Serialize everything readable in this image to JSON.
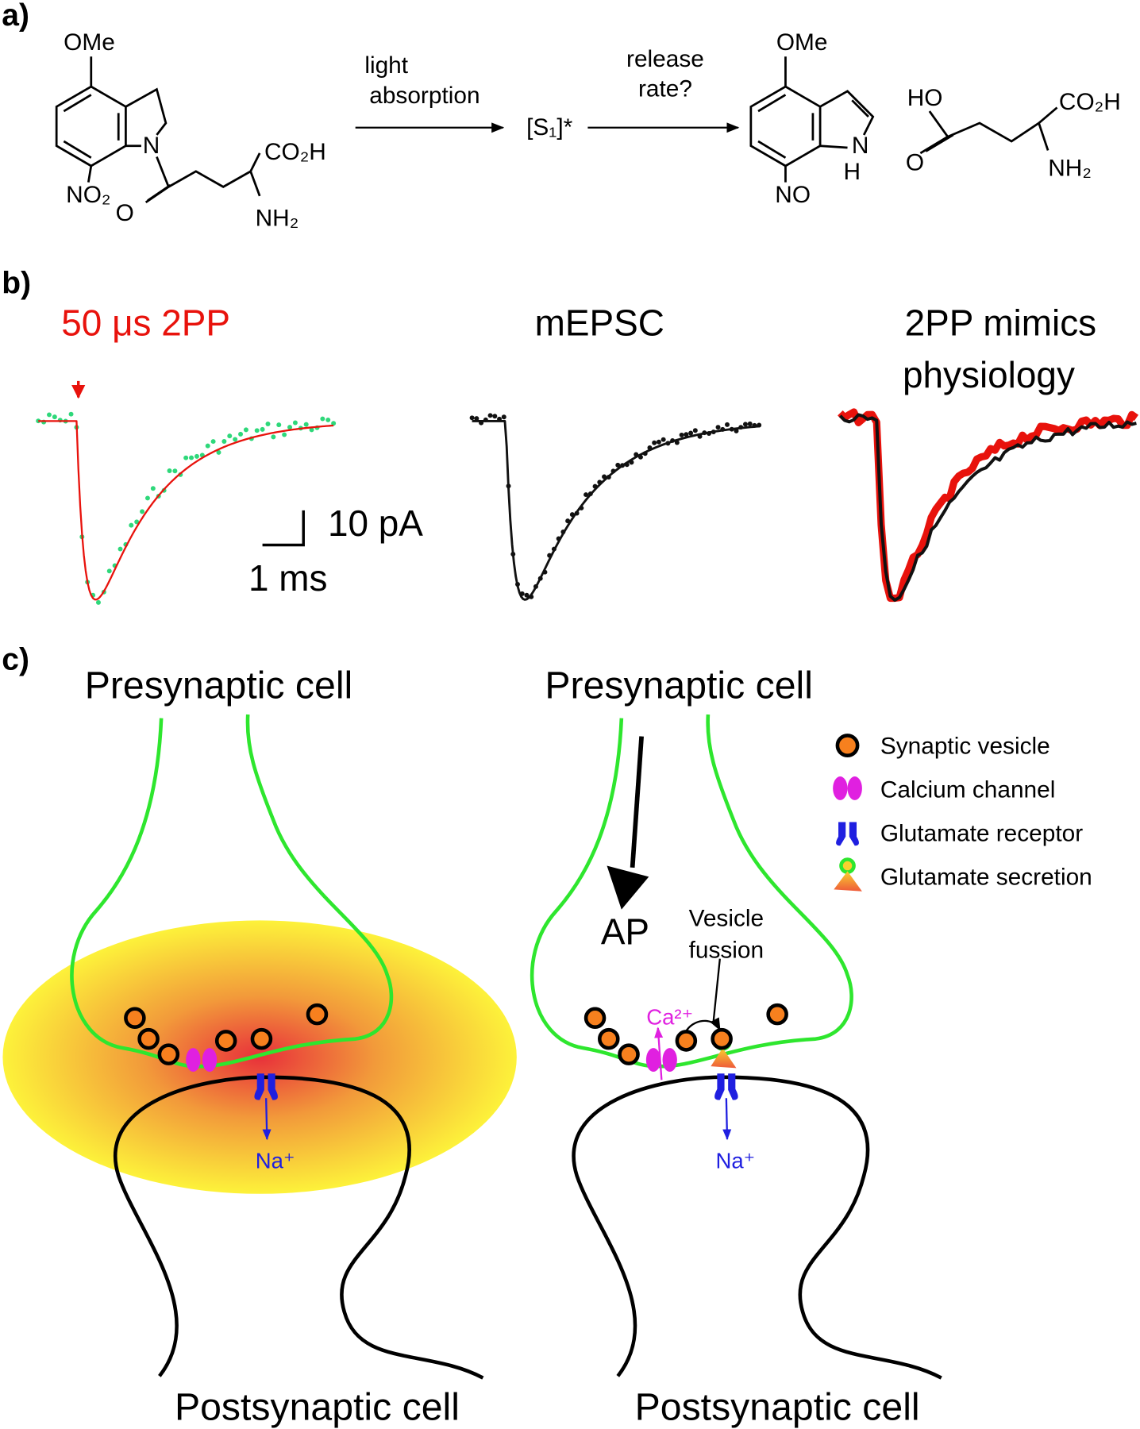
{
  "panel_a": {
    "label": "a)",
    "reactant": {
      "methoxy": "OMe",
      "ring_n": "N",
      "nitro": "NO₂",
      "carbonyl_o": "O",
      "acid": "CO₂H",
      "amine": "NH₂"
    },
    "step_1": [
      "light",
      "absorption"
    ],
    "intermediate": "[S₁]*",
    "step_2": [
      "release",
      "rate?"
    ],
    "indole": {
      "methoxy": "OMe",
      "ring_n": "N",
      "ring_h": "H",
      "nitroso": "NO"
    },
    "glutamate": {
      "hydroxyl": "HO",
      "acid": "CO₂H",
      "carbonyl_o": "O",
      "amine": "NH₂"
    }
  },
  "panel_b": {
    "label": "b)",
    "titles": [
      "50 μs 2PP",
      "mEPSC",
      "2PP mimics",
      "physiology"
    ],
    "scale_bar": {
      "current": "10 pA",
      "time": "1 ms"
    }
  },
  "panel_c": {
    "label": "c)",
    "left": {
      "top": "Presynaptic cell",
      "bottom": "Postsynaptic cell",
      "ion": "Na⁺"
    },
    "right": {
      "top": "Presynaptic cell",
      "bottom": "Postsynaptic cell",
      "ion": "Na⁺",
      "calcium": "Ca²⁺",
      "action_potential": "AP",
      "fusion": [
        "Vesicle",
        "fussion"
      ]
    },
    "legend": [
      "Synaptic vesicle",
      "Calcium channel",
      "Glutamate receptor",
      "Glutamate secretion"
    ]
  }
}
